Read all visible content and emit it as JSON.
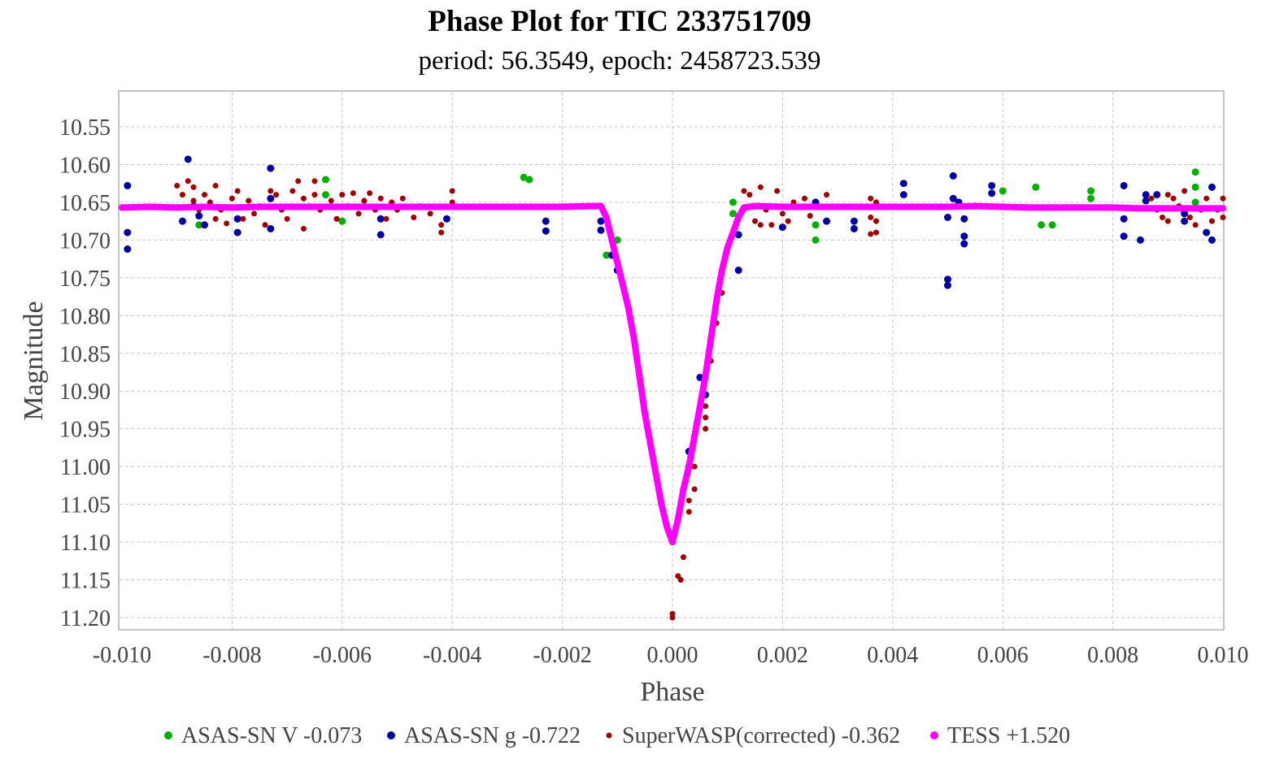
{
  "chart_data": {
    "type": "scatter",
    "title": "Phase Plot for TIC 233751709",
    "subtitle": "period: 56.3549, epoch: 2458723.539",
    "xlabel": "Phase",
    "ylabel": "Magnitude",
    "xlim": [
      -0.01,
      0.01
    ],
    "ylim": [
      10.503,
      11.216
    ],
    "y_inverted": true,
    "grid": true,
    "legend_position": "bottom",
    "x_ticks": [
      "-0.010",
      "-0.008",
      "-0.006",
      "-0.004",
      "-0.002",
      "0.000",
      "0.002",
      "0.004",
      "0.006",
      "0.008",
      "0.010"
    ],
    "y_ticks": [
      "10.55",
      "10.60",
      "10.65",
      "10.70",
      "10.75",
      "10.80",
      "10.85",
      "10.90",
      "10.95",
      "11.00",
      "11.05",
      "11.10",
      "11.15",
      "11.20"
    ],
    "series": [
      {
        "name": "ASAS-SN V -0.073",
        "color": "#00b000",
        "points": [
          [
            -0.0086,
            10.68
          ],
          [
            -0.0063,
            10.62
          ],
          [
            -0.0063,
            10.64
          ],
          [
            -0.006,
            10.675
          ],
          [
            -0.0027,
            10.617
          ],
          [
            -0.0026,
            10.62
          ],
          [
            -0.0012,
            10.72
          ],
          [
            -0.001,
            10.7
          ],
          [
            0.0011,
            10.65
          ],
          [
            0.0011,
            10.665
          ],
          [
            0.0026,
            10.68
          ],
          [
            0.0026,
            10.7
          ],
          [
            0.006,
            10.635
          ],
          [
            0.0066,
            10.63
          ],
          [
            0.0067,
            10.68
          ],
          [
            0.0069,
            10.68
          ],
          [
            0.0076,
            10.645
          ],
          [
            0.0076,
            10.635
          ],
          [
            0.0095,
            10.61
          ],
          [
            0.0095,
            10.63
          ],
          [
            0.0095,
            10.65
          ]
        ]
      },
      {
        "name": "ASAS-SN g -0.722",
        "color": "#0000a0",
        "points": [
          [
            -0.0099,
            10.69
          ],
          [
            -0.0099,
            10.712
          ],
          [
            -0.0099,
            10.628
          ],
          [
            -0.0089,
            10.675
          ],
          [
            -0.0088,
            10.593
          ],
          [
            -0.0087,
            10.655
          ],
          [
            -0.0086,
            10.668
          ],
          [
            -0.0085,
            10.68
          ],
          [
            -0.0079,
            10.69
          ],
          [
            -0.0079,
            10.672
          ],
          [
            -0.0073,
            10.605
          ],
          [
            -0.0073,
            10.685
          ],
          [
            -0.0073,
            10.645
          ],
          [
            -0.0053,
            10.693
          ],
          [
            -0.0053,
            10.672
          ],
          [
            -0.0041,
            10.672
          ],
          [
            -0.0023,
            10.675
          ],
          [
            -0.0023,
            10.688
          ],
          [
            -0.0013,
            10.675
          ],
          [
            -0.0013,
            10.687
          ],
          [
            -0.0011,
            10.72
          ],
          [
            -0.001,
            10.74
          ],
          [
            0.0005,
            10.882
          ],
          [
            0.0006,
            10.905
          ],
          [
            0.0003,
            10.98
          ],
          [
            0.0003,
            11.0
          ],
          [
            0.0012,
            10.74
          ],
          [
            0.0012,
            10.693
          ],
          [
            0.002,
            10.683
          ],
          [
            0.0026,
            10.65
          ],
          [
            0.0028,
            10.675
          ],
          [
            0.0033,
            10.675
          ],
          [
            0.0033,
            10.685
          ],
          [
            0.0042,
            10.64
          ],
          [
            0.0042,
            10.625
          ],
          [
            0.005,
            10.67
          ],
          [
            0.005,
            10.752
          ],
          [
            0.005,
            10.76
          ],
          [
            0.0051,
            10.615
          ],
          [
            0.0051,
            10.645
          ],
          [
            0.0052,
            10.65
          ],
          [
            0.0053,
            10.672
          ],
          [
            0.0053,
            10.695
          ],
          [
            0.0053,
            10.705
          ],
          [
            0.0058,
            10.628
          ],
          [
            0.0058,
            10.638
          ],
          [
            0.0082,
            10.628
          ],
          [
            0.0082,
            10.695
          ],
          [
            0.0082,
            10.672
          ],
          [
            0.0085,
            10.7
          ],
          [
            0.0086,
            10.64
          ],
          [
            0.0086,
            10.648
          ],
          [
            0.0088,
            10.64
          ],
          [
            0.0093,
            10.665
          ],
          [
            0.0093,
            10.675
          ],
          [
            0.0098,
            10.63
          ],
          [
            0.0098,
            10.7
          ],
          [
            0.0097,
            10.69
          ]
        ]
      },
      {
        "name": "SuperWASP(corrected) -0.362",
        "color": "#a00000",
        "points": [
          [
            -0.009,
            10.628
          ],
          [
            -0.0089,
            10.64
          ],
          [
            -0.0088,
            10.622
          ],
          [
            -0.0087,
            10.63
          ],
          [
            -0.0087,
            10.648
          ],
          [
            -0.0086,
            10.66
          ],
          [
            -0.0085,
            10.64
          ],
          [
            -0.0084,
            10.65
          ],
          [
            -0.0083,
            10.672
          ],
          [
            -0.0083,
            10.628
          ],
          [
            -0.0082,
            10.66
          ],
          [
            -0.0081,
            10.678
          ],
          [
            -0.008,
            10.645
          ],
          [
            -0.0079,
            10.635
          ],
          [
            -0.0078,
            10.672
          ],
          [
            -0.0077,
            10.648
          ],
          [
            -0.0076,
            10.665
          ],
          [
            -0.0075,
            10.655
          ],
          [
            -0.0074,
            10.68
          ],
          [
            -0.0073,
            10.635
          ],
          [
            -0.0072,
            10.64
          ],
          [
            -0.0071,
            10.66
          ],
          [
            -0.007,
            10.672
          ],
          [
            -0.0069,
            10.635
          ],
          [
            -0.0068,
            10.622
          ],
          [
            -0.0067,
            10.645
          ],
          [
            -0.0067,
            10.685
          ],
          [
            -0.0066,
            10.655
          ],
          [
            -0.0065,
            10.64
          ],
          [
            -0.0065,
            10.622
          ],
          [
            -0.0064,
            10.66
          ],
          [
            -0.0062,
            10.648
          ],
          [
            -0.0061,
            10.672
          ],
          [
            -0.006,
            10.64
          ],
          [
            -0.0059,
            10.655
          ],
          [
            -0.0058,
            10.638
          ],
          [
            -0.0057,
            10.665
          ],
          [
            -0.0056,
            10.648
          ],
          [
            -0.0055,
            10.638
          ],
          [
            -0.0054,
            10.66
          ],
          [
            -0.0053,
            10.645
          ],
          [
            -0.0052,
            10.672
          ],
          [
            -0.0051,
            10.65
          ],
          [
            -0.005,
            10.66
          ],
          [
            -0.0049,
            10.645
          ],
          [
            -0.0047,
            10.67
          ],
          [
            -0.0046,
            10.655
          ],
          [
            -0.0044,
            10.665
          ],
          [
            -0.0042,
            10.69
          ],
          [
            -0.0042,
            10.68
          ],
          [
            -0.004,
            10.635
          ],
          [
            -0.004,
            10.65
          ],
          [
            0.0004,
            11.0
          ],
          [
            0.0004,
            11.03
          ],
          [
            0.0003,
            11.06
          ],
          [
            0.0003,
            11.045
          ],
          [
            0.0002,
            11.12
          ],
          [
            0.0001,
            11.145
          ],
          [
            0.00015,
            11.15
          ],
          [
            0.0,
            11.195
          ],
          [
            0.0,
            11.2
          ],
          [
            0.0006,
            10.935
          ],
          [
            0.0006,
            10.92
          ],
          [
            0.0007,
            10.86
          ],
          [
            0.0008,
            10.81
          ],
          [
            0.0009,
            10.77
          ],
          [
            0.0006,
            10.95
          ],
          [
            0.0013,
            10.635
          ],
          [
            0.0014,
            10.64
          ],
          [
            0.0015,
            10.675
          ],
          [
            0.0016,
            10.68
          ],
          [
            0.0016,
            10.63
          ],
          [
            0.0017,
            10.66
          ],
          [
            0.0018,
            10.68
          ],
          [
            0.0019,
            10.635
          ],
          [
            0.002,
            10.665
          ],
          [
            0.0021,
            10.675
          ],
          [
            0.0022,
            10.65
          ],
          [
            0.0024,
            10.645
          ],
          [
            0.0025,
            10.668
          ],
          [
            0.0028,
            10.64
          ],
          [
            0.0036,
            10.645
          ],
          [
            0.0036,
            10.67
          ],
          [
            0.0036,
            10.692
          ],
          [
            0.0037,
            10.69
          ],
          [
            0.0037,
            10.675
          ],
          [
            0.0037,
            10.65
          ],
          [
            0.0087,
            10.645
          ],
          [
            0.0088,
            10.66
          ],
          [
            0.0089,
            10.67
          ],
          [
            0.009,
            10.64
          ],
          [
            0.009,
            10.675
          ],
          [
            0.0091,
            10.645
          ],
          [
            0.0092,
            10.655
          ],
          [
            0.0093,
            10.635
          ],
          [
            0.0094,
            10.67
          ],
          [
            0.0095,
            10.68
          ],
          [
            0.0096,
            10.66
          ],
          [
            0.0097,
            10.645
          ],
          [
            0.0098,
            10.675
          ],
          [
            0.0099,
            10.66
          ],
          [
            0.01,
            10.645
          ],
          [
            0.01,
            10.67
          ]
        ]
      },
      {
        "name": "TESS +1.520",
        "color": "#ff00ff",
        "points": [
          [
            -0.01,
            10.657
          ],
          [
            -0.0095,
            10.656
          ],
          [
            -0.009,
            10.657
          ],
          [
            -0.0085,
            10.656
          ],
          [
            -0.008,
            10.657
          ],
          [
            -0.0075,
            10.656
          ],
          [
            -0.007,
            10.656
          ],
          [
            -0.0065,
            10.656
          ],
          [
            -0.006,
            10.656
          ],
          [
            -0.0055,
            10.656
          ],
          [
            -0.005,
            10.656
          ],
          [
            -0.0045,
            10.656
          ],
          [
            -0.004,
            10.656
          ],
          [
            -0.0035,
            10.656
          ],
          [
            -0.003,
            10.656
          ],
          [
            -0.0025,
            10.656
          ],
          [
            -0.002,
            10.656
          ],
          [
            -0.0015,
            10.655
          ],
          [
            -0.0013,
            10.655
          ],
          [
            -0.0012,
            10.67
          ],
          [
            -0.0011,
            10.7
          ],
          [
            -0.001,
            10.73
          ],
          [
            -0.0009,
            10.76
          ],
          [
            -0.0008,
            10.79
          ],
          [
            -0.0007,
            10.83
          ],
          [
            -0.0006,
            10.88
          ],
          [
            -0.0005,
            10.93
          ],
          [
            -0.0004,
            10.97
          ],
          [
            -0.0003,
            11.01
          ],
          [
            -0.0002,
            11.05
          ],
          [
            -0.0001,
            11.08
          ],
          [
            0.0,
            11.1
          ],
          [
            0.0001,
            11.07
          ],
          [
            0.0002,
            11.03
          ],
          [
            0.0003,
            11.0
          ],
          [
            0.0004,
            10.96
          ],
          [
            0.0005,
            10.92
          ],
          [
            0.0006,
            10.88
          ],
          [
            0.0007,
            10.83
          ],
          [
            0.0008,
            10.78
          ],
          [
            0.0009,
            10.74
          ],
          [
            0.001,
            10.71
          ],
          [
            0.0011,
            10.69
          ],
          [
            0.0012,
            10.67
          ],
          [
            0.0013,
            10.657
          ],
          [
            0.0015,
            10.655
          ],
          [
            0.002,
            10.656
          ],
          [
            0.0025,
            10.656
          ],
          [
            0.003,
            10.656
          ],
          [
            0.0035,
            10.656
          ],
          [
            0.004,
            10.656
          ],
          [
            0.0045,
            10.656
          ],
          [
            0.005,
            10.656
          ],
          [
            0.0055,
            10.655
          ],
          [
            0.006,
            10.656
          ],
          [
            0.0065,
            10.657
          ],
          [
            0.007,
            10.657
          ],
          [
            0.0075,
            10.657
          ],
          [
            0.008,
            10.657
          ],
          [
            0.0085,
            10.658
          ],
          [
            0.009,
            10.658
          ],
          [
            0.0095,
            10.658
          ],
          [
            0.01,
            10.658
          ]
        ]
      }
    ]
  }
}
